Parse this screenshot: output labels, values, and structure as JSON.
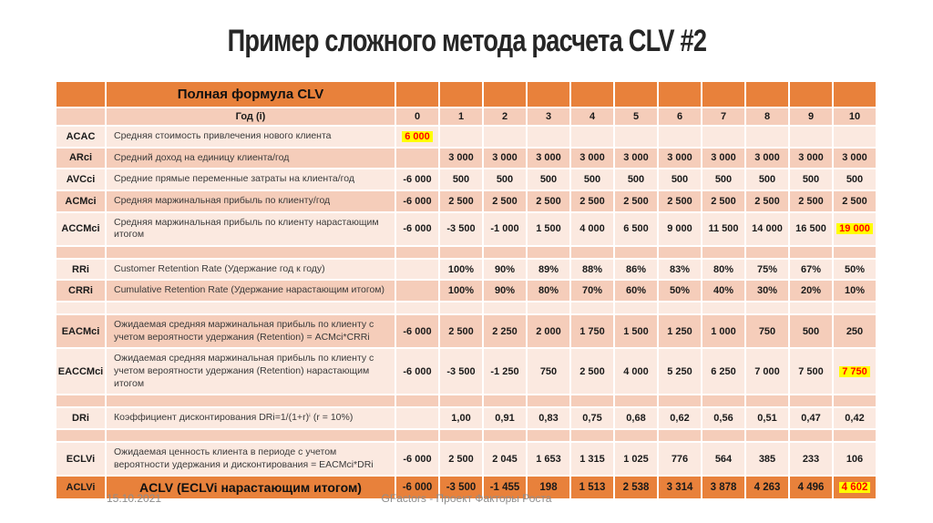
{
  "title": "Пример сложного метода расчета CLV #2",
  "footer": {
    "date": "15.10.2021",
    "credit": "GFactors - Проект Факторы Роста"
  },
  "colors": {
    "accent_orange": "#E8813B",
    "band_dark": "#F5CDBA",
    "band_light": "#FBE9E0",
    "highlight_bg": "#FFFF00",
    "highlight_text": "#FF0000"
  },
  "table": {
    "formula_header": "Полная формула CLV",
    "rows": [
      {
        "kind": "years",
        "band": "dark",
        "label": "Год (i)",
        "values": [
          "0",
          "1",
          "2",
          "3",
          "4",
          "5",
          "6",
          "7",
          "8",
          "9",
          "10"
        ],
        "highlights": []
      },
      {
        "kind": "data",
        "band": "light",
        "code": "ACAC",
        "label": "Средняя стоимость привлечения нового клиента",
        "values": [
          "6 000",
          "",
          "",
          "",
          "",
          "",
          "",
          "",
          "",
          "",
          ""
        ],
        "highlights": [
          0
        ]
      },
      {
        "kind": "data",
        "band": "dark",
        "code": "ARci",
        "label": "Средний доход на единицу клиента/год",
        "values": [
          "",
          "3 000",
          "3 000",
          "3 000",
          "3 000",
          "3 000",
          "3 000",
          "3 000",
          "3 000",
          "3 000",
          "3 000"
        ],
        "highlights": []
      },
      {
        "kind": "data",
        "band": "light",
        "code": "AVCci",
        "label": "Средние прямые переменные затраты на клиента/год",
        "values": [
          "-6 000",
          "500",
          "500",
          "500",
          "500",
          "500",
          "500",
          "500",
          "500",
          "500",
          "500"
        ],
        "highlights": []
      },
      {
        "kind": "data",
        "band": "dark",
        "code": "ACMci",
        "label": "Средняя маржинальная прибыль по клиенту/год",
        "values": [
          "-6 000",
          "2 500",
          "2 500",
          "2 500",
          "2 500",
          "2 500",
          "2 500",
          "2 500",
          "2 500",
          "2 500",
          "2 500"
        ],
        "highlights": []
      },
      {
        "kind": "data",
        "band": "light",
        "code": "ACCMci",
        "label": "Средняя маржинальная прибыль по клиенту нарастающим итогом",
        "values": [
          "-6 000",
          "-3 500",
          "-1 000",
          "1 500",
          "4 000",
          "6 500",
          "9 000",
          "11 500",
          "14 000",
          "16 500",
          "19 000"
        ],
        "highlights": [
          10
        ]
      },
      {
        "kind": "blank",
        "band": "dark"
      },
      {
        "kind": "data",
        "band": "light",
        "code": "RRi",
        "label": "Customer Retention Rate (Удержание год к году)",
        "values": [
          "",
          "100%",
          "90%",
          "89%",
          "88%",
          "86%",
          "83%",
          "80%",
          "75%",
          "67%",
          "50%"
        ],
        "highlights": []
      },
      {
        "kind": "data",
        "band": "dark",
        "code": "CRRi",
        "label": "Cumulative Retention Rate (Удержание нарастающим итогом)",
        "values": [
          "",
          "100%",
          "90%",
          "80%",
          "70%",
          "60%",
          "50%",
          "40%",
          "30%",
          "20%",
          "10%"
        ],
        "highlights": []
      },
      {
        "kind": "blank",
        "band": "light"
      },
      {
        "kind": "data",
        "band": "dark",
        "code": "EACMci",
        "label": "Ожидаемая средняя маржинальная прибыль по клиенту с учетом вероятности удержания (Retention) = ACMci*CRRi",
        "values": [
          "-6 000",
          "2 500",
          "2 250",
          "2 000",
          "1 750",
          "1 500",
          "1 250",
          "1 000",
          "750",
          "500",
          "250"
        ],
        "highlights": []
      },
      {
        "kind": "data",
        "band": "light",
        "code": "EACCMci",
        "label": "Ожидаемая средняя маржинальная прибыль по клиенту с учетом вероятности удержания (Retention) нарастающим итогом",
        "values": [
          "-6 000",
          "-3 500",
          "-1 250",
          "750",
          "2 500",
          "4 000",
          "5 250",
          "6 250",
          "7 000",
          "7 500",
          "7 750"
        ],
        "highlights": [
          10
        ]
      },
      {
        "kind": "blank",
        "band": "dark"
      },
      {
        "kind": "data",
        "band": "light",
        "code": "DRi",
        "label": "Коэффициент дисконтирования DRi=1/(1+r)ⁱ (r = 10%)",
        "values": [
          "",
          "1,00",
          "0,91",
          "0,83",
          "0,75",
          "0,68",
          "0,62",
          "0,56",
          "0,51",
          "0,47",
          "0,42"
        ],
        "highlights": []
      },
      {
        "kind": "blank",
        "band": "dark"
      },
      {
        "kind": "data",
        "band": "light",
        "code": "ECLVi",
        "label": "Ожидаемая ценность клиента в периоде с учетом вероятности удержания и дисконтирования = EACMci*DRi",
        "values": [
          "-6 000",
          "2 500",
          "2 045",
          "1 653",
          "1 315",
          "1 025",
          "776",
          "564",
          "385",
          "233",
          "106"
        ],
        "highlights": []
      },
      {
        "kind": "total",
        "band": "orange",
        "code": "ACLVi",
        "label": "ACLV (ECLVi нарастающим итогом)",
        "values": [
          "-6 000",
          "-3 500",
          "-1 455",
          "198",
          "1 513",
          "2 538",
          "3 314",
          "3 878",
          "4 263",
          "4 496",
          "4 602"
        ],
        "highlights": [
          10
        ]
      }
    ]
  }
}
